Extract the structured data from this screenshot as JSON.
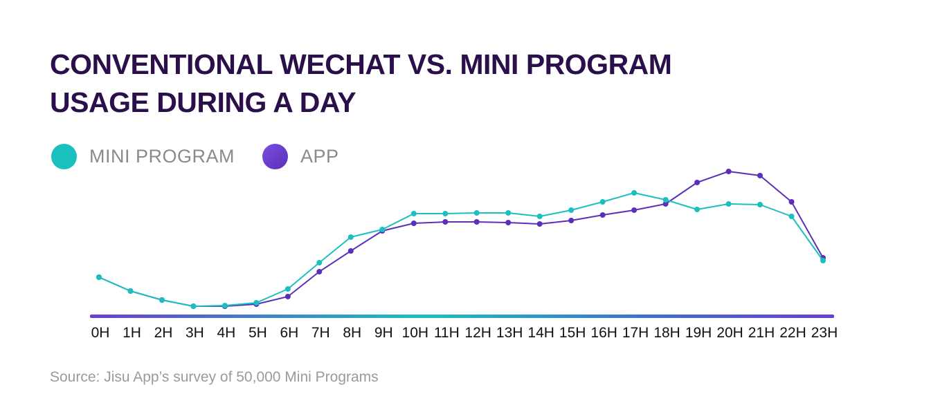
{
  "title_lines": [
    "CONVENTIONAL WECHAT VS. MINI PROGRAM",
    "USAGE DURING A DAY"
  ],
  "source": "Source: Jisu App’s survey of 50,000 Mini Programs",
  "colors": {
    "mini_program": "#1bbfbf",
    "app": "#5b2fb8",
    "title": "#2a0f4a"
  },
  "chart_data": {
    "type": "line",
    "title": "CONVENTIONAL WECHAT VS. MINI PROGRAM USAGE DURING A DAY",
    "xlabel": "",
    "ylabel": "",
    "grid": false,
    "legend": "top-left",
    "x": [
      "0H",
      "1H",
      "2H",
      "3H",
      "4H",
      "5H",
      "6H",
      "7H",
      "8H",
      "9H",
      "10H",
      "11H",
      "12H",
      "13H",
      "14H",
      "15H",
      "16H",
      "17H",
      "18H",
      "19H",
      "20H",
      "21H",
      "22H",
      "23H"
    ],
    "ylim": [
      0,
      220
    ],
    "series": [
      {
        "name": "MINI PROGRAM",
        "color": "#1bbfbf",
        "values": [
          55,
          35,
          22,
          13,
          14,
          18,
          38,
          76,
          113,
          124,
          147,
          147,
          148,
          148,
          143,
          152,
          164,
          177,
          167,
          153,
          161,
          160,
          143,
          79
        ]
      },
      {
        "name": "APP",
        "color": "#5b2fb8",
        "values": [
          55,
          35,
          22,
          13,
          13,
          16,
          27,
          63,
          93,
          122,
          133,
          135,
          135,
          134,
          132,
          137,
          145,
          152,
          161,
          192,
          208,
          202,
          164,
          83
        ]
      }
    ]
  }
}
